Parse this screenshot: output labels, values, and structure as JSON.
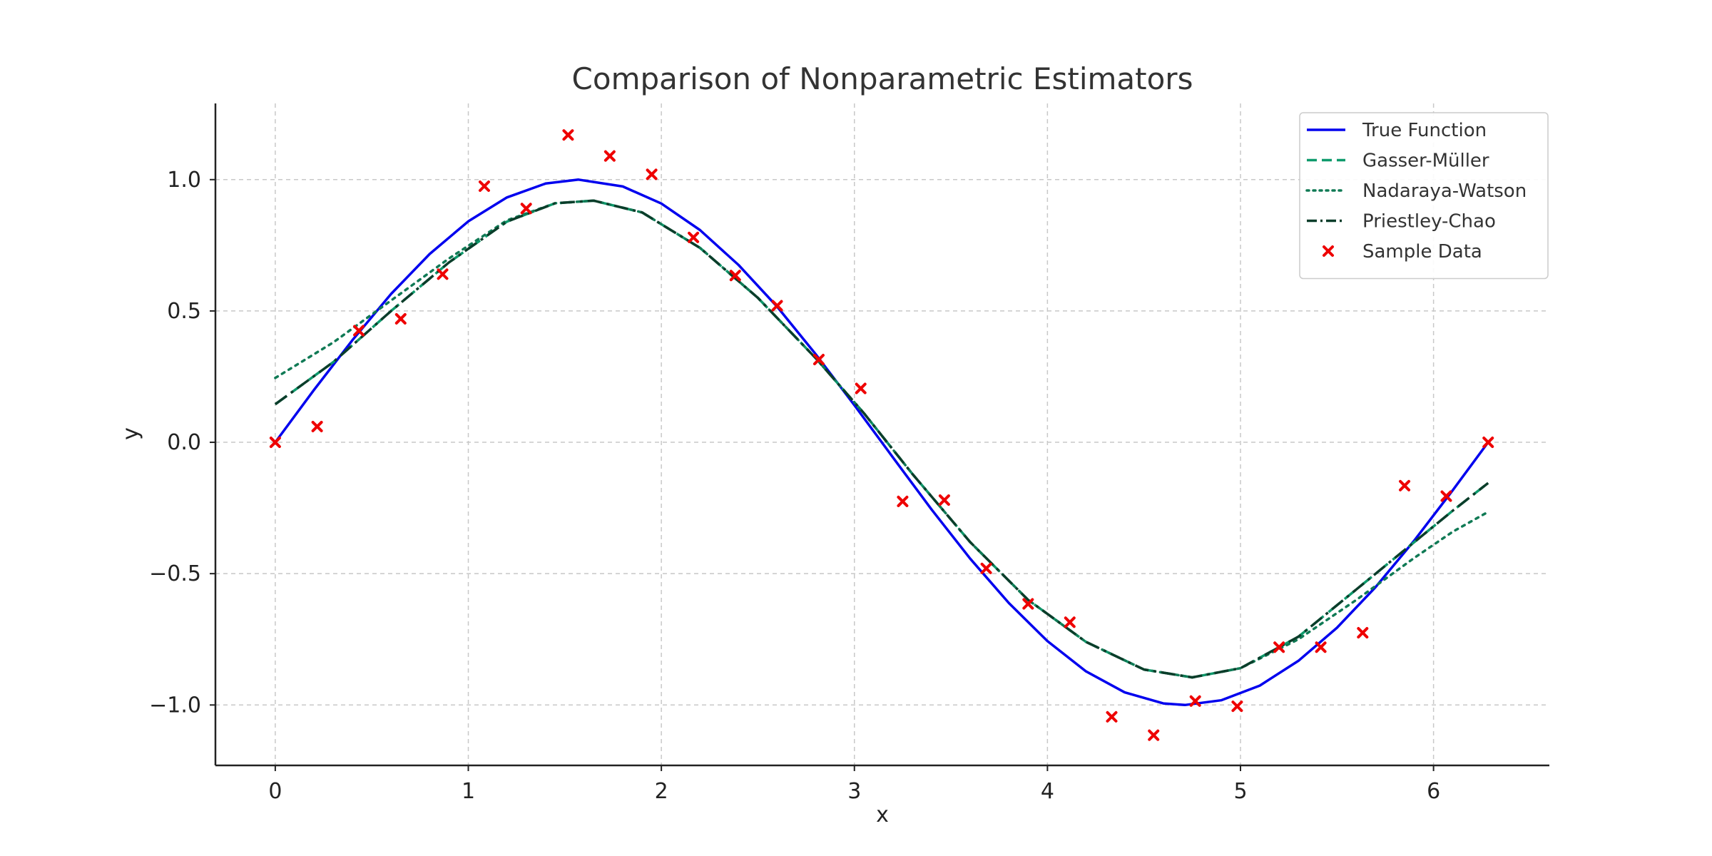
{
  "chart_data": {
    "type": "line",
    "title": "Comparison of Nonparametric Estimators",
    "xlabel": "x",
    "ylabel": "y",
    "xlim": [
      -0.31,
      6.6
    ],
    "ylim": [
      -1.23,
      1.29
    ],
    "xticks": [
      0,
      1,
      2,
      3,
      4,
      5,
      6
    ],
    "xtick_labels": [
      "0",
      "1",
      "2",
      "3",
      "4",
      "5",
      "6"
    ],
    "yticks": [
      -1.0,
      -0.5,
      0.0,
      0.5,
      1.0
    ],
    "ytick_labels": [
      "−1.0",
      "−0.5",
      "0.0",
      "0.5",
      "1.0"
    ],
    "grid": true,
    "legend_position": "top-right",
    "series": [
      {
        "name": "True Function",
        "kind": "line",
        "style": "solid",
        "color": "#0000ee",
        "x": [
          0,
          0.2,
          0.4,
          0.6,
          0.8,
          1.0,
          1.2,
          1.4,
          1.571,
          1.8,
          2.0,
          2.2,
          2.4,
          2.6,
          2.8,
          3.0,
          3.2,
          3.4,
          3.6,
          3.8,
          4.0,
          4.2,
          4.4,
          4.6,
          4.712,
          4.9,
          5.1,
          5.3,
          5.5,
          5.7,
          5.9,
          6.1,
          6.283
        ],
        "y": [
          0.0,
          0.199,
          0.389,
          0.565,
          0.717,
          0.841,
          0.932,
          0.985,
          1.0,
          0.974,
          0.909,
          0.808,
          0.675,
          0.516,
          0.335,
          0.141,
          -0.058,
          -0.256,
          -0.443,
          -0.612,
          -0.757,
          -0.872,
          -0.952,
          -0.994,
          -1.0,
          -0.982,
          -0.926,
          -0.832,
          -0.706,
          -0.551,
          -0.374,
          -0.182,
          0.0
        ]
      },
      {
        "name": "Gasser-Müller",
        "kind": "line",
        "style": "dashed",
        "color": "#0e9a6c",
        "x": [
          0,
          0.3,
          0.6,
          0.9,
          1.2,
          1.45,
          1.65,
          1.9,
          2.2,
          2.5,
          2.8,
          3.05,
          3.3,
          3.6,
          3.9,
          4.2,
          4.5,
          4.75,
          5.0,
          5.3,
          5.6,
          5.9,
          6.1,
          6.283
        ],
        "y": [
          0.145,
          0.305,
          0.5,
          0.685,
          0.84,
          0.91,
          0.92,
          0.875,
          0.74,
          0.55,
          0.32,
          0.11,
          -0.12,
          -0.38,
          -0.6,
          -0.76,
          -0.865,
          -0.895,
          -0.86,
          -0.74,
          -0.56,
          -0.38,
          -0.26,
          -0.155
        ]
      },
      {
        "name": "Nadaraya-Watson",
        "kind": "line",
        "style": "dotted",
        "color": "#107a55",
        "x": [
          0,
          0.3,
          0.6,
          0.9,
          1.2,
          1.45,
          1.65,
          1.9,
          2.2,
          2.5,
          2.8,
          3.05,
          3.3,
          3.6,
          3.9,
          4.2,
          4.5,
          4.75,
          5.0,
          5.3,
          5.6,
          5.9,
          6.1,
          6.283
        ],
        "y": [
          0.245,
          0.38,
          0.54,
          0.7,
          0.845,
          0.91,
          0.92,
          0.875,
          0.74,
          0.55,
          0.32,
          0.11,
          -0.12,
          -0.38,
          -0.6,
          -0.76,
          -0.865,
          -0.895,
          -0.86,
          -0.75,
          -0.6,
          -0.44,
          -0.34,
          -0.265
        ]
      },
      {
        "name": "Priestley-Chao",
        "kind": "line",
        "style": "dashdot",
        "color": "#0b3d2a",
        "x": [
          0,
          0.3,
          0.6,
          0.9,
          1.2,
          1.45,
          1.65,
          1.9,
          2.2,
          2.5,
          2.8,
          3.05,
          3.3,
          3.6,
          3.9,
          4.2,
          4.5,
          4.75,
          5.0,
          5.3,
          5.6,
          5.9,
          6.1,
          6.283
        ],
        "y": [
          0.145,
          0.305,
          0.5,
          0.685,
          0.84,
          0.91,
          0.92,
          0.875,
          0.74,
          0.55,
          0.32,
          0.11,
          -0.12,
          -0.38,
          -0.6,
          -0.76,
          -0.865,
          -0.895,
          -0.86,
          -0.74,
          -0.56,
          -0.38,
          -0.26,
          -0.155
        ]
      },
      {
        "name": "Sample Data",
        "kind": "scatter",
        "marker": "x",
        "color": "#ee0000",
        "x": [
          0,
          0.217,
          0.433,
          0.65,
          0.867,
          1.083,
          1.3,
          1.517,
          1.733,
          1.95,
          2.166,
          2.383,
          2.6,
          2.816,
          3.033,
          3.25,
          3.466,
          3.683,
          3.9,
          4.116,
          4.333,
          4.55,
          4.766,
          4.983,
          5.2,
          5.416,
          5.633,
          5.85,
          6.066,
          6.283
        ],
        "y": [
          0.0,
          0.06,
          0.425,
          0.47,
          0.64,
          0.975,
          0.89,
          1.17,
          1.09,
          1.02,
          0.78,
          0.635,
          0.52,
          0.315,
          0.205,
          -0.225,
          -0.22,
          -0.48,
          -0.615,
          -0.685,
          -1.045,
          -1.115,
          -0.985,
          -1.005,
          -0.78,
          -0.78,
          -0.725,
          -0.165,
          -0.205,
          0.0
        ]
      }
    ]
  }
}
